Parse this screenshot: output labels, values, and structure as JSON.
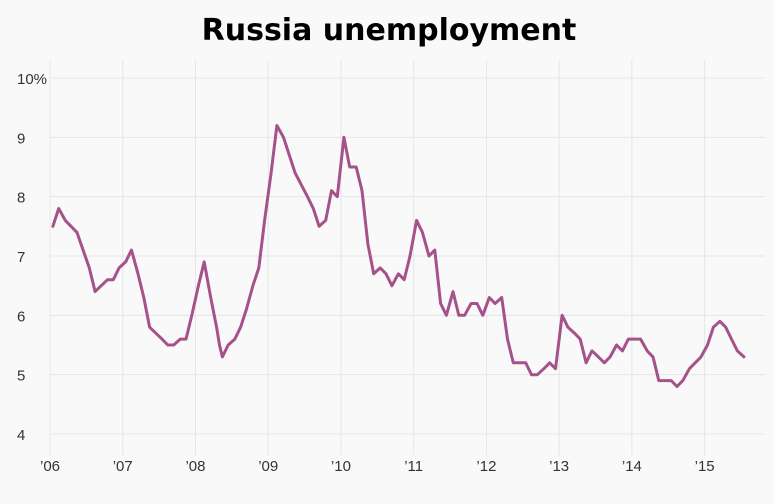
{
  "chart_data": {
    "type": "line",
    "title": "Russia unemployment",
    "xlabel": "",
    "ylabel": "",
    "ylim": [
      4,
      10
    ],
    "xlim": [
      2006.0,
      2015.83
    ],
    "y_ticks": [
      {
        "value": 10,
        "label": "10%"
      },
      {
        "value": 9,
        "label": "9"
      },
      {
        "value": 8,
        "label": "8"
      },
      {
        "value": 7,
        "label": "7"
      },
      {
        "value": 6,
        "label": "6"
      },
      {
        "value": 5,
        "label": "5"
      },
      {
        "value": 4,
        "label": "4"
      }
    ],
    "x_ticks": [
      {
        "value": 2006,
        "label": "’06"
      },
      {
        "value": 2007,
        "label": "’07"
      },
      {
        "value": 2008,
        "label": "’08"
      },
      {
        "value": 2009,
        "label": "’09"
      },
      {
        "value": 2010,
        "label": "’10"
      },
      {
        "value": 2011,
        "label": "’11"
      },
      {
        "value": 2012,
        "label": "’12"
      },
      {
        "value": 2013,
        "label": "’13"
      },
      {
        "value": 2014,
        "label": "’14"
      },
      {
        "value": 2015,
        "label": "’15"
      }
    ],
    "grid": true,
    "line_color": "#a6528a",
    "series": [
      {
        "values": [
          [
            2006.04,
            7.5
          ],
          [
            2006.12,
            7.8
          ],
          [
            2006.21,
            7.6
          ],
          [
            2006.37,
            7.4
          ],
          [
            2006.54,
            6.8
          ],
          [
            2006.62,
            6.4
          ],
          [
            2006.79,
            6.6
          ],
          [
            2006.87,
            6.6
          ],
          [
            2006.95,
            6.8
          ],
          [
            2007.04,
            6.9
          ],
          [
            2007.12,
            7.1
          ],
          [
            2007.21,
            6.7
          ],
          [
            2007.29,
            6.3
          ],
          [
            2007.37,
            5.8
          ],
          [
            2007.54,
            5.6
          ],
          [
            2007.62,
            5.5
          ],
          [
            2007.7,
            5.5
          ],
          [
            2007.79,
            5.6
          ],
          [
            2007.87,
            5.6
          ],
          [
            2007.95,
            6.0
          ],
          [
            2008.04,
            6.5
          ],
          [
            2008.12,
            6.9
          ],
          [
            2008.21,
            6.3
          ],
          [
            2008.29,
            5.8
          ],
          [
            2008.33,
            5.5
          ],
          [
            2008.37,
            5.3
          ],
          [
            2008.45,
            5.5
          ],
          [
            2008.54,
            5.6
          ],
          [
            2008.62,
            5.8
          ],
          [
            2008.7,
            6.1
          ],
          [
            2008.79,
            6.5
          ],
          [
            2008.87,
            6.8
          ],
          [
            2008.95,
            7.6
          ],
          [
            2009.04,
            8.4
          ],
          [
            2009.12,
            9.2
          ],
          [
            2009.21,
            9.0
          ],
          [
            2009.29,
            8.7
          ],
          [
            2009.37,
            8.4
          ],
          [
            2009.54,
            8.0
          ],
          [
            2009.62,
            7.8
          ],
          [
            2009.7,
            7.5
          ],
          [
            2009.79,
            7.6
          ],
          [
            2009.87,
            8.1
          ],
          [
            2009.95,
            8.0
          ],
          [
            2010.04,
            9.0
          ],
          [
            2010.12,
            8.5
          ],
          [
            2010.21,
            8.5
          ],
          [
            2010.29,
            8.1
          ],
          [
            2010.37,
            7.2
          ],
          [
            2010.45,
            6.7
          ],
          [
            2010.54,
            6.8
          ],
          [
            2010.62,
            6.7
          ],
          [
            2010.7,
            6.5
          ],
          [
            2010.79,
            6.7
          ],
          [
            2010.87,
            6.6
          ],
          [
            2010.95,
            7.0
          ],
          [
            2011.04,
            7.6
          ],
          [
            2011.12,
            7.4
          ],
          [
            2011.21,
            7.0
          ],
          [
            2011.29,
            7.1
          ],
          [
            2011.37,
            6.2
          ],
          [
            2011.45,
            6.0
          ],
          [
            2011.54,
            6.4
          ],
          [
            2011.62,
            6.0
          ],
          [
            2011.7,
            6.0
          ],
          [
            2011.79,
            6.2
          ],
          [
            2011.87,
            6.2
          ],
          [
            2011.95,
            6.0
          ],
          [
            2012.04,
            6.3
          ],
          [
            2012.12,
            6.2
          ],
          [
            2012.21,
            6.3
          ],
          [
            2012.29,
            5.6
          ],
          [
            2012.37,
            5.2
          ],
          [
            2012.45,
            5.2
          ],
          [
            2012.54,
            5.2
          ],
          [
            2012.62,
            5.0
          ],
          [
            2012.7,
            5.0
          ],
          [
            2012.79,
            5.1
          ],
          [
            2012.87,
            5.2
          ],
          [
            2012.95,
            5.1
          ],
          [
            2013.04,
            6.0
          ],
          [
            2013.12,
            5.8
          ],
          [
            2013.21,
            5.7
          ],
          [
            2013.29,
            5.6
          ],
          [
            2013.37,
            5.2
          ],
          [
            2013.45,
            5.4
          ],
          [
            2013.54,
            5.3
          ],
          [
            2013.62,
            5.2
          ],
          [
            2013.7,
            5.3
          ],
          [
            2013.79,
            5.5
          ],
          [
            2013.87,
            5.4
          ],
          [
            2013.95,
            5.6
          ],
          [
            2014.04,
            5.6
          ],
          [
            2014.12,
            5.6
          ],
          [
            2014.21,
            5.4
          ],
          [
            2014.29,
            5.3
          ],
          [
            2014.37,
            4.9
          ],
          [
            2014.45,
            4.9
          ],
          [
            2014.54,
            4.9
          ],
          [
            2014.62,
            4.8
          ],
          [
            2014.7,
            4.9
          ],
          [
            2014.79,
            5.1
          ],
          [
            2014.87,
            5.2
          ],
          [
            2014.95,
            5.3
          ],
          [
            2015.04,
            5.5
          ],
          [
            2015.12,
            5.8
          ],
          [
            2015.21,
            5.9
          ],
          [
            2015.29,
            5.8
          ],
          [
            2015.37,
            5.6
          ],
          [
            2015.45,
            5.4
          ],
          [
            2015.54,
            5.3
          ]
        ]
      }
    ]
  }
}
